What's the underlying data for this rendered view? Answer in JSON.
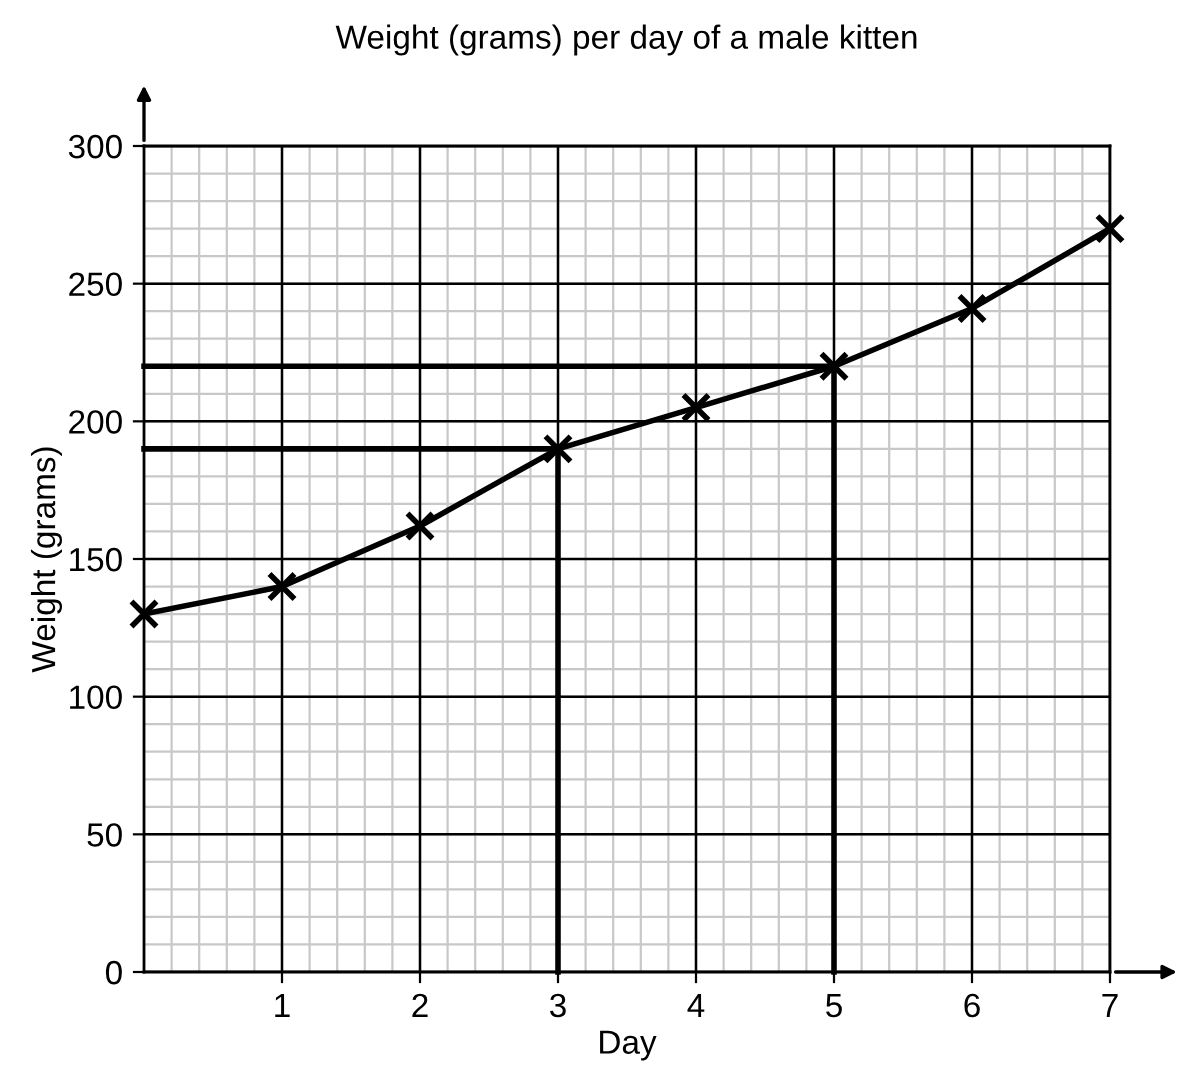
{
  "chart_data": {
    "type": "line",
    "title": "Weight (grams) per day of a male kitten",
    "xlabel": "Day",
    "ylabel": "Weight (grams)",
    "x": [
      0,
      1,
      2,
      3,
      4,
      5,
      6,
      7
    ],
    "series": [
      {
        "color": "#000000",
        "values": [
          130,
          140,
          162,
          190,
          205,
          220,
          241,
          270
        ],
        "marker": "cross"
      },
      {
        "color": "#000000",
        "x": [
          0,
          3,
          3
        ],
        "values": [
          190,
          190,
          0
        ],
        "marker": "none"
      },
      {
        "color": "#000000",
        "x": [
          0,
          5,
          5
        ],
        "values": [
          220,
          220,
          0
        ],
        "marker": "none"
      }
    ],
    "xlim": [
      0,
      7
    ],
    "ylim": [
      0,
      300
    ],
    "xticks": [
      1,
      2,
      3,
      4,
      5,
      6,
      7
    ],
    "yticks": [
      0,
      50,
      100,
      150,
      200,
      250,
      300
    ],
    "grid": true,
    "line_style": "solid"
  }
}
